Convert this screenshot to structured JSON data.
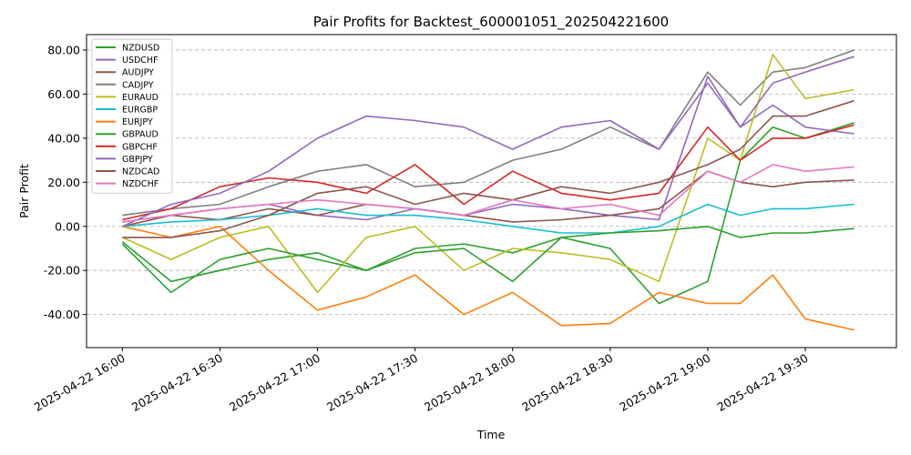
{
  "chart_data": {
    "type": "line",
    "title": "Pair Profits for Backtest_600001051_202504221600",
    "xlabel": "Time",
    "ylabel": "Pair Profit",
    "x_ticks": [
      "2025-04-22 16:00",
      "2025-04-22 16:30",
      "2025-04-22 17:00",
      "2025-04-22 17:30",
      "2025-04-22 18:00",
      "2025-04-22 18:30",
      "2025-04-22 19:00",
      "2025-04-22 19:30"
    ],
    "y_ticks": [
      "-40.00",
      "-20.00",
      "0.00",
      "20.00",
      "40.00",
      "60.00",
      "80.00"
    ],
    "xlim": [
      "2025-04-22 15:49",
      "2025-04-22 19:58"
    ],
    "ylim": [
      -55,
      87
    ],
    "grid": "horizontal dashed",
    "legend_position": "upper-left",
    "x_times": [
      "2025-04-22 16:00",
      "2025-04-22 16:15",
      "2025-04-22 16:30",
      "2025-04-22 16:45",
      "2025-04-22 17:00",
      "2025-04-22 17:15",
      "2025-04-22 17:30",
      "2025-04-22 17:45",
      "2025-04-22 18:00",
      "2025-04-22 18:15",
      "2025-04-22 18:30",
      "2025-04-22 18:45",
      "2025-04-22 19:00",
      "2025-04-22 19:10",
      "2025-04-22 19:20",
      "2025-04-22 19:30",
      "2025-04-22 19:45"
    ],
    "series": [
      {
        "name": "NZDUSD",
        "color": "#2ca02c",
        "values": [
          -7,
          -25,
          -20,
          -15,
          -12,
          -20,
          -10,
          -8,
          -12,
          -5,
          -10,
          -35,
          -25,
          30,
          45,
          40,
          47
        ]
      },
      {
        "name": "USDCHF",
        "color": "#9467bd",
        "values": [
          2,
          5,
          8,
          10,
          5,
          3,
          8,
          5,
          10,
          8,
          5,
          3,
          68,
          45,
          55,
          45,
          42
        ]
      },
      {
        "name": "AUDJPY",
        "color": "#8c564b",
        "values": [
          0,
          5,
          3,
          8,
          5,
          10,
          8,
          5,
          2,
          3,
          5,
          8,
          25,
          20,
          18,
          20,
          21
        ]
      },
      {
        "name": "CADJPY",
        "color": "#7f7f7f",
        "values": [
          5,
          8,
          10,
          18,
          25,
          28,
          18,
          20,
          30,
          35,
          45,
          35,
          70,
          55,
          70,
          72,
          80
        ]
      },
      {
        "name": "EURAUD",
        "color": "#bcbd22",
        "values": [
          -5,
          -15,
          -5,
          0,
          -30,
          -5,
          0,
          -20,
          -10,
          -12,
          -15,
          -25,
          40,
          30,
          78,
          58,
          62
        ]
      },
      {
        "name": "EURGBP",
        "color": "#17becf",
        "values": [
          0,
          2,
          3,
          5,
          8,
          5,
          5,
          3,
          0,
          -3,
          -3,
          0,
          10,
          5,
          8,
          8,
          10
        ]
      },
      {
        "name": "EURJPY",
        "color": "#ff7f0e",
        "values": [
          0,
          -5,
          0,
          -20,
          -38,
          -32,
          -22,
          -40,
          -30,
          -45,
          -44,
          -30,
          -35,
          -35,
          -22,
          -42,
          -47
        ]
      },
      {
        "name": "GBPAUD",
        "color": "#2ca02c",
        "values": [
          -8,
          -30,
          -15,
          -10,
          -15,
          -20,
          -12,
          -10,
          -25,
          -5,
          -3,
          -2,
          0,
          -5,
          -3,
          -3,
          -1
        ]
      },
      {
        "name": "GBPCHF",
        "color": "#d62728",
        "values": [
          3,
          8,
          18,
          22,
          20,
          15,
          28,
          10,
          25,
          15,
          12,
          15,
          45,
          30,
          40,
          40,
          46
        ]
      },
      {
        "name": "GBPJPY",
        "color": "#9467bd",
        "values": [
          0,
          10,
          15,
          25,
          40,
          50,
          48,
          45,
          35,
          45,
          48,
          35,
          65,
          45,
          65,
          70,
          77
        ]
      },
      {
        "name": "NZDCAD",
        "color": "#8c564b",
        "values": [
          -5,
          -5,
          -2,
          5,
          15,
          18,
          10,
          15,
          12,
          18,
          15,
          20,
          28,
          35,
          50,
          50,
          57
        ]
      },
      {
        "name": "NZDCHF",
        "color": "#e377c2",
        "values": [
          2,
          5,
          8,
          10,
          12,
          10,
          8,
          5,
          12,
          8,
          10,
          5,
          25,
          20,
          28,
          25,
          27
        ]
      }
    ]
  }
}
